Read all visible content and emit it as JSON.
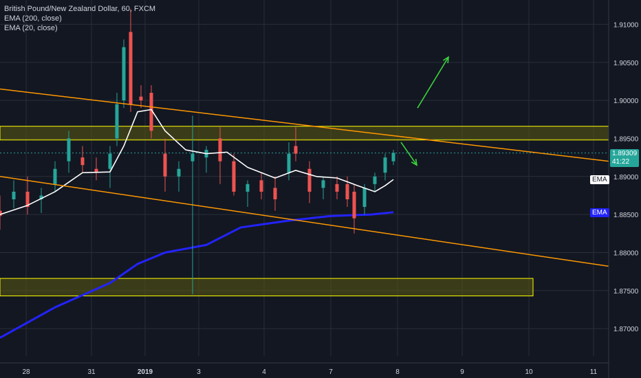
{
  "legend": {
    "title": "British Pound/New Zealand Dollar, 60, FXCM",
    "ema200": "EMA (200, close)",
    "ema20": "EMA (20, close)"
  },
  "colors": {
    "background": "#131722",
    "grid": "#2a2e39",
    "text": "#d1d4dc",
    "up": "#26a69a",
    "down": "#ef5350",
    "ema20": "#ffffff",
    "ema200": "#2323ff",
    "trendline": "#ff9800",
    "zone_stroke": "#ffff00",
    "zone_fill": "#5b5a10",
    "arrow": "#3cd43c",
    "current_price_bg": "#26a69a"
  },
  "price_axis": {
    "ticks": [
      "1.91000",
      "1.90500",
      "1.90000",
      "1.89500",
      "1.89000",
      "1.88500",
      "1.88000",
      "1.87500",
      "1.87000"
    ],
    "current_price": "1.89309",
    "countdown": "41:22",
    "ema20_tag": "EMA",
    "ema200_tag": "EMA"
  },
  "time_axis": {
    "ticks": [
      "28",
      "31",
      "2019",
      "3",
      "4",
      "7",
      "8",
      "9",
      "10",
      "11"
    ]
  },
  "chart_data": {
    "type": "candlestick",
    "symbol": "British Pound/New Zealand Dollar",
    "interval": "60",
    "source": "FXCM",
    "y_range": [
      1.8664,
      1.9132
    ],
    "x_labels": [
      "28",
      "31",
      "2019",
      "3",
      "4",
      "7",
      "8",
      "9",
      "10",
      "11"
    ],
    "last_price": 1.89309,
    "series_ema200_anchor": [
      [
        0,
        1.8688
      ],
      [
        80,
        1.8728
      ],
      [
        160,
        1.876
      ],
      [
        200,
        1.8785
      ],
      [
        240,
        1.88
      ],
      [
        300,
        1.881
      ],
      [
        350,
        1.8833
      ],
      [
        420,
        1.8842
      ],
      [
        480,
        1.8848
      ],
      [
        540,
        1.885
      ],
      [
        572,
        1.8853
      ]
    ],
    "series_ema20_anchor": [
      [
        0,
        1.885
      ],
      [
        40,
        1.8862
      ],
      [
        80,
        1.888
      ],
      [
        120,
        1.8905
      ],
      [
        160,
        1.8906
      ],
      [
        180,
        1.894
      ],
      [
        200,
        1.8985
      ],
      [
        220,
        1.8988
      ],
      [
        240,
        1.896
      ],
      [
        270,
        1.8935
      ],
      [
        300,
        1.893
      ],
      [
        330,
        1.8932
      ],
      [
        360,
        1.8912
      ],
      [
        400,
        1.8898
      ],
      [
        430,
        1.8908
      ],
      [
        460,
        1.89
      ],
      [
        490,
        1.8898
      ],
      [
        520,
        1.8888
      ],
      [
        545,
        1.888
      ],
      [
        560,
        1.8888
      ],
      [
        572,
        1.8896
      ]
    ],
    "candles": [
      {
        "x": 0,
        "o": 1.8855,
        "h": 1.8875,
        "l": 1.883,
        "c": 1.8848
      },
      {
        "x": 20,
        "o": 1.887,
        "h": 1.8895,
        "l": 1.8858,
        "c": 1.888
      },
      {
        "x": 40,
        "o": 1.888,
        "h": 1.89,
        "l": 1.885,
        "c": 1.886
      },
      {
        "x": 60,
        "o": 1.887,
        "h": 1.8885,
        "l": 1.8852,
        "c": 1.8875
      },
      {
        "x": 80,
        "o": 1.889,
        "h": 1.892,
        "l": 1.888,
        "c": 1.891
      },
      {
        "x": 100,
        "o": 1.892,
        "h": 1.896,
        "l": 1.8905,
        "c": 1.895
      },
      {
        "x": 120,
        "o": 1.8925,
        "h": 1.894,
        "l": 1.8905,
        "c": 1.8915
      },
      {
        "x": 140,
        "o": 1.891,
        "h": 1.8925,
        "l": 1.8895,
        "c": 1.8905
      },
      {
        "x": 160,
        "o": 1.891,
        "h": 1.894,
        "l": 1.8885,
        "c": 1.893
      },
      {
        "x": 170,
        "o": 1.895,
        "h": 1.901,
        "l": 1.894,
        "c": 1.8995
      },
      {
        "x": 180,
        "o": 1.9,
        "h": 1.908,
        "l": 1.899,
        "c": 1.907
      },
      {
        "x": 190,
        "o": 1.909,
        "h": 1.912,
        "l": 1.8985,
        "c": 1.8995
      },
      {
        "x": 205,
        "o": 1.9005,
        "h": 1.902,
        "l": 1.899,
        "c": 1.9
      },
      {
        "x": 220,
        "o": 1.901,
        "h": 1.902,
        "l": 1.895,
        "c": 1.896
      },
      {
        "x": 240,
        "o": 1.893,
        "h": 1.895,
        "l": 1.888,
        "c": 1.89
      },
      {
        "x": 260,
        "o": 1.89,
        "h": 1.892,
        "l": 1.888,
        "c": 1.891
      },
      {
        "x": 280,
        "o": 1.892,
        "h": 1.898,
        "l": 1.8745,
        "c": 1.893
      },
      {
        "x": 300,
        "o": 1.8925,
        "h": 1.894,
        "l": 1.8905,
        "c": 1.8935
      },
      {
        "x": 320,
        "o": 1.895,
        "h": 1.8965,
        "l": 1.889,
        "c": 1.892
      },
      {
        "x": 340,
        "o": 1.892,
        "h": 1.893,
        "l": 1.8875,
        "c": 1.888
      },
      {
        "x": 360,
        "o": 1.888,
        "h": 1.8895,
        "l": 1.886,
        "c": 1.889
      },
      {
        "x": 380,
        "o": 1.8895,
        "h": 1.8905,
        "l": 1.887,
        "c": 1.888
      },
      {
        "x": 400,
        "o": 1.8885,
        "h": 1.89,
        "l": 1.8855,
        "c": 1.887
      },
      {
        "x": 420,
        "o": 1.8905,
        "h": 1.8945,
        "l": 1.8895,
        "c": 1.893
      },
      {
        "x": 430,
        "o": 1.894,
        "h": 1.8965,
        "l": 1.892,
        "c": 1.893
      },
      {
        "x": 450,
        "o": 1.891,
        "h": 1.892,
        "l": 1.8865,
        "c": 1.888
      },
      {
        "x": 470,
        "o": 1.8885,
        "h": 1.89,
        "l": 1.887,
        "c": 1.8895
      },
      {
        "x": 490,
        "o": 1.889,
        "h": 1.89,
        "l": 1.887,
        "c": 1.888
      },
      {
        "x": 505,
        "o": 1.889,
        "h": 1.89,
        "l": 1.886,
        "c": 1.887
      },
      {
        "x": 515,
        "o": 1.888,
        "h": 1.889,
        "l": 1.8825,
        "c": 1.8845
      },
      {
        "x": 530,
        "o": 1.886,
        "h": 1.889,
        "l": 1.885,
        "c": 1.8885
      },
      {
        "x": 545,
        "o": 1.889,
        "h": 1.8905,
        "l": 1.888,
        "c": 1.89
      },
      {
        "x": 560,
        "o": 1.8905,
        "h": 1.893,
        "l": 1.8895,
        "c": 1.8925
      },
      {
        "x": 572,
        "o": 1.892,
        "h": 1.8935,
        "l": 1.8915,
        "c": 1.8931
      }
    ],
    "zones": [
      {
        "y_top": 1.8966,
        "y_bottom": 1.8948,
        "x_start": 0,
        "x_end": 885
      },
      {
        "y_top": 1.8766,
        "y_bottom": 1.8743,
        "x_start": 0,
        "x_end": 775
      }
    ],
    "trendlines": [
      {
        "from": [
          0,
          1.9015
        ],
        "to": [
          885,
          1.892
        ]
      },
      {
        "from": [
          0,
          1.89
        ],
        "to": [
          885,
          1.8782
        ]
      }
    ],
    "arrows": [
      {
        "from": [
          607,
          1.899
        ],
        "to": [
          652,
          1.9057
        ]
      },
      {
        "from": [
          583,
          1.8945
        ],
        "to": [
          606,
          1.8915
        ]
      }
    ]
  }
}
